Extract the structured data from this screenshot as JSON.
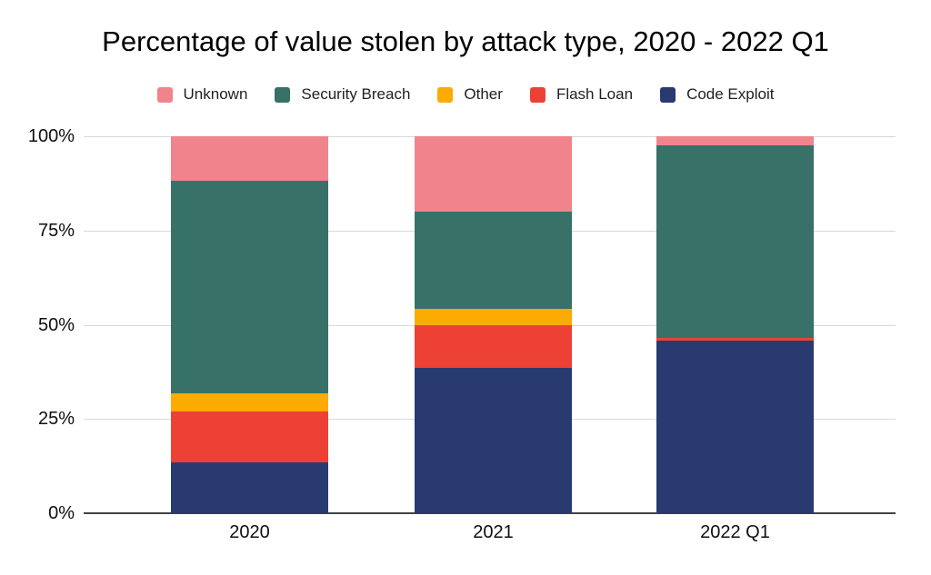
{
  "chart_data": {
    "type": "bar",
    "stacked": true,
    "title": "Percentage of value stolen by attack type, 2020 - 2022 Q1",
    "categories": [
      "2020",
      "2021",
      "2022 Q1"
    ],
    "series": [
      {
        "name": "Unknown",
        "color": "#F0838C",
        "values": [
          11.8,
          20.1,
          2.4
        ]
      },
      {
        "name": "Security Breach",
        "color": "#377168",
        "values": [
          56.5,
          25.7,
          51.1
        ]
      },
      {
        "name": "Other",
        "color": "#FBAB01",
        "values": [
          4.7,
          4.3,
          0
        ]
      },
      {
        "name": "Flash Loan",
        "color": "#EE4136",
        "values": [
          13.5,
          11.3,
          0.6
        ]
      },
      {
        "name": "Code Exploit",
        "color": "#293A70",
        "values": [
          13.5,
          38.6,
          45.9
        ]
      }
    ],
    "stack_order_note": "series listed top-to-bottom of stack; legend order matches",
    "y_ticks": [
      {
        "label": "100%",
        "value": 100
      },
      {
        "label": "75%",
        "value": 75
      },
      {
        "label": "50%",
        "value": 50
      },
      {
        "label": "25%",
        "value": 25
      },
      {
        "label": "0%",
        "value": 0
      }
    ],
    "ylim": [
      0,
      100
    ],
    "grid": true,
    "legend_position": "top",
    "colors": {
      "gridline": "#d9d9d9",
      "baseline": "#424242",
      "background": "#ffffff",
      "text": "#0f0f0f"
    }
  }
}
